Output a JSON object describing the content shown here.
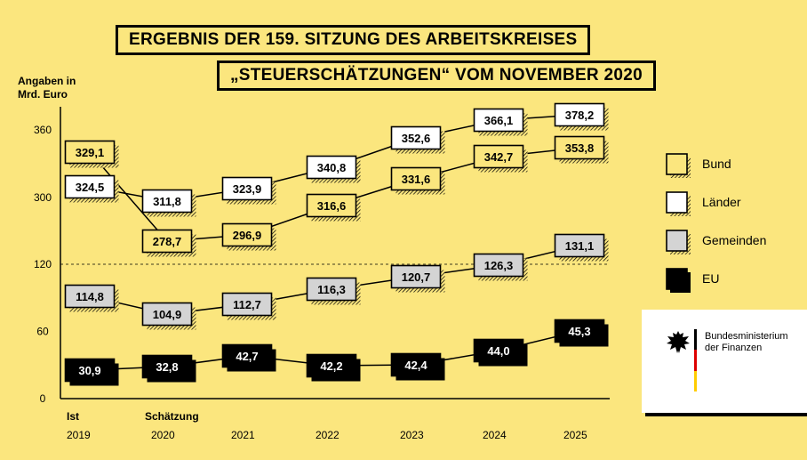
{
  "header": {
    "title_line1": "ERGEBNIS DER 159. SITZUNG DES ARBEITSKREISES",
    "title_line2": "„STEUERSCHÄTZUNGEN“ VOM NOVEMBER 2020"
  },
  "logo": {
    "line1": "Bundesministerium",
    "line2": "der Finanzen"
  },
  "colors": {
    "background": "#fbe67e",
    "bund": "#fbe67e",
    "laender": "#ffffff",
    "gemeinden": "#d4d4d4",
    "eu": "#000000"
  },
  "chart_data": {
    "type": "line",
    "ylabel_line1": "Angaben in",
    "ylabel_line2": "Mrd. Euro",
    "y_axis": "broken scale: lower segment 0-120, upper segment 300-360",
    "yticks": [
      "0",
      "60",
      "120",
      "300",
      "360"
    ],
    "x_labels": [
      {
        "top": "Ist",
        "bottom": "2019"
      },
      {
        "top": "Schätzung",
        "bottom": "2020"
      },
      {
        "top": "",
        "bottom": "2021"
      },
      {
        "top": "",
        "bottom": "2022"
      },
      {
        "top": "",
        "bottom": "2023"
      },
      {
        "top": "",
        "bottom": "2024"
      },
      {
        "top": "",
        "bottom": "2025"
      }
    ],
    "x": [
      "2019",
      "2020",
      "2021",
      "2022",
      "2023",
      "2024",
      "2025"
    ],
    "series": [
      {
        "name": "Bund",
        "color": "#fbe67e",
        "text_color": "#000000",
        "values": [
          329.1,
          278.7,
          296.9,
          316.6,
          331.6,
          342.7,
          353.8
        ],
        "labels": [
          "329,1",
          "278,7",
          "296,9",
          "316,6",
          "331,6",
          "342,7",
          "353,8"
        ]
      },
      {
        "name": "Länder",
        "color": "#ffffff",
        "text_color": "#000000",
        "values": [
          324.5,
          311.8,
          323.9,
          340.8,
          352.6,
          366.1,
          378.2
        ],
        "labels": [
          "324,5",
          "311,8",
          "323,9",
          "340,8",
          "352,6",
          "366,1",
          "378,2"
        ]
      },
      {
        "name": "Gemeinden",
        "color": "#d4d4d4",
        "text_color": "#000000",
        "values": [
          114.8,
          104.9,
          112.7,
          116.3,
          120.7,
          126.3,
          131.1
        ],
        "labels": [
          "114,8",
          "104,9",
          "112,7",
          "116,3",
          "120,7",
          "126,3",
          "131,1"
        ]
      },
      {
        "name": "EU",
        "color": "#000000",
        "text_color": "#ffffff",
        "values": [
          30.9,
          32.8,
          42.7,
          42.2,
          42.4,
          44.0,
          45.3
        ],
        "labels": [
          "30,9",
          "32,8",
          "42,7",
          "42,2",
          "42,4",
          "44,0",
          "45,3"
        ]
      }
    ],
    "legend": [
      "Bund",
      "Länder",
      "Gemeinden",
      "EU"
    ],
    "legend_position": "right",
    "grid": false
  }
}
